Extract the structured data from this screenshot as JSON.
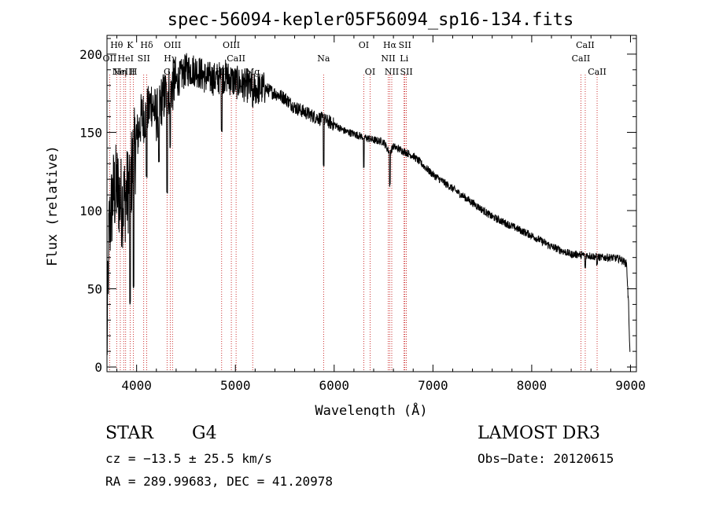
{
  "chart_data": {
    "type": "line",
    "title": "spec-56094-kepler05F56094_sp16-134.fits",
    "xlabel": "Wavelength (Å)",
    "ylabel": "Flux (relative)",
    "xlim": [
      3700,
      9060
    ],
    "ylim": [
      -3,
      212
    ],
    "xticks": [
      4000,
      5000,
      6000,
      7000,
      8000,
      9000
    ],
    "xtick_labels": [
      "4000",
      "5000",
      "6000",
      "7000",
      "8000",
      "9000"
    ],
    "yticks": [
      0,
      50,
      100,
      150,
      200
    ],
    "ytick_labels": [
      "0",
      "50",
      "100",
      "150",
      "200"
    ],
    "grid": false,
    "series": [
      {
        "name": "flux",
        "anchors_x": [
          3700,
          3720,
          3760,
          3800,
          3850,
          3900,
          3950,
          4000,
          4050,
          4100,
          4150,
          4200,
          4250,
          4300,
          4400,
          4500,
          4600,
          4700,
          4800,
          4900,
          5000,
          5100,
          5200,
          5300,
          5400,
          5500,
          5600,
          5700,
          5800,
          5900,
          6000,
          6100,
          6200,
          6300,
          6400,
          6500,
          6560,
          6600,
          6700,
          6800,
          7000,
          7200,
          7400,
          7600,
          7800,
          8000,
          8200,
          8400,
          8500,
          8600,
          8700,
          8800,
          8900,
          8960,
          8980,
          8995
        ],
        "anchors_y": [
          10,
          85,
          110,
          115,
          105,
          110,
          125,
          145,
          160,
          160,
          170,
          160,
          170,
          175,
          182,
          190,
          190,
          185,
          184,
          186,
          182,
          180,
          178,
          178,
          175,
          172,
          166,
          163,
          160,
          158,
          155,
          151,
          149,
          147,
          145,
          144,
          137,
          141,
          138,
          135,
          123,
          114,
          105,
          96,
          90,
          84,
          77,
          72,
          72,
          71,
          70,
          70,
          69,
          66,
          40,
          8
        ],
        "absorption_dips": [
          {
            "x": 3934,
            "y": 40
          },
          {
            "x": 3968,
            "y": 50
          },
          {
            "x": 4102,
            "y": 120
          },
          {
            "x": 4227,
            "y": 130
          },
          {
            "x": 4308,
            "y": 110
          },
          {
            "x": 4340,
            "y": 140
          },
          {
            "x": 4861,
            "y": 150
          },
          {
            "x": 5175,
            "y": 165
          },
          {
            "x": 5893,
            "y": 127
          },
          {
            "x": 6300,
            "y": 125
          },
          {
            "x": 6563,
            "y": 115
          },
          {
            "x": 8498,
            "y": 69
          },
          {
            "x": 8542,
            "y": 63
          },
          {
            "x": 8662,
            "y": 64
          }
        ]
      }
    ],
    "line_markers": [
      {
        "x": 3727,
        "labels": [
          "OII"
        ],
        "row": 1
      },
      {
        "x": 3798,
        "labels": [
          "Hθ"
        ],
        "row": 0
      },
      {
        "x": 3835,
        "labels": [
          "Hη"
        ],
        "row": 2
      },
      {
        "x": 3869,
        "labels": [
          "NeIII"
        ],
        "row": 2
      },
      {
        "x": 3889,
        "labels": [
          "HeI"
        ],
        "row": 1
      },
      {
        "x": 3934,
        "labels": [
          "K"
        ],
        "row": 0
      },
      {
        "x": 3968,
        "labels": [
          "H"
        ],
        "row": 2
      },
      {
        "x": 4072,
        "labels": [
          "SII"
        ],
        "row": 1
      },
      {
        "x": 4102,
        "labels": [
          "Hδ"
        ],
        "row": 0
      },
      {
        "x": 4308,
        "labels": [
          "G"
        ],
        "row": 2
      },
      {
        "x": 4340,
        "labels": [
          "Hγ"
        ],
        "row": 1
      },
      {
        "x": 4363,
        "labels": [
          "OIII"
        ],
        "row": 0
      },
      {
        "x": 4861,
        "labels": [
          "Hβ"
        ],
        "row": 2
      },
      {
        "x": 4959,
        "labels": [
          "OIII"
        ],
        "row": 0
      },
      {
        "x": 5007,
        "labels": [
          "CaII"
        ],
        "row": 1
      },
      {
        "x": 5175,
        "labels": [
          "Mg"
        ],
        "row": 2
      },
      {
        "x": 5893,
        "labels": [
          "Na"
        ],
        "row": 1
      },
      {
        "x": 6300,
        "labels": [
          "OI"
        ],
        "row": 0
      },
      {
        "x": 6364,
        "labels": [
          "OI"
        ],
        "row": 2
      },
      {
        "x": 6548,
        "labels": [
          "NII"
        ],
        "row": 1
      },
      {
        "x": 6563,
        "labels": [
          "Hα"
        ],
        "row": 0
      },
      {
        "x": 6583,
        "labels": [
          "NII"
        ],
        "row": 2
      },
      {
        "x": 6708,
        "labels": [
          "Li"
        ],
        "row": 1
      },
      {
        "x": 6716,
        "labels": [
          "SII"
        ],
        "row": 0
      },
      {
        "x": 6731,
        "labels": [
          "SII"
        ],
        "row": 2
      },
      {
        "x": 8498,
        "labels": [
          "CaII"
        ],
        "row": 1
      },
      {
        "x": 8542,
        "labels": [
          "CaII"
        ],
        "row": 0
      },
      {
        "x": 8662,
        "labels": [
          "CaII"
        ],
        "row": 2
      }
    ],
    "colors": {
      "spectrum": "#000000",
      "markers": "#c00000",
      "axes": "#000000"
    }
  },
  "info": {
    "object_class": "STAR",
    "subclass": "G4",
    "survey": "LAMOST DR3",
    "cz": "cz = −13.5 ± 25.5 km/s",
    "obs_date": "Obs−Date: 20120615",
    "coords": "RA = 289.99683, DEC =  41.20978"
  }
}
